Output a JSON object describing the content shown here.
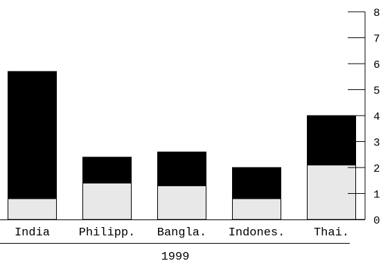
{
  "chart_data": {
    "type": "bar",
    "stacked": true,
    "categories": [
      "India",
      "Philipp.",
      "Bangla.",
      "Indones.",
      "Thai."
    ],
    "group_label": "1999",
    "series": [
      {
        "values": [
          0.8,
          1.4,
          1.3,
          0.8,
          2.1
        ],
        "color": "#e8e8e8"
      },
      {
        "values": [
          4.9,
          1.0,
          1.3,
          1.2,
          1.9
        ],
        "color": "#000000"
      }
    ],
    "ylim": [
      0,
      8
    ],
    "yticks": [
      "0",
      "1",
      "2",
      "3",
      "4",
      "5",
      "6",
      "7",
      "8"
    ],
    "y_axis_side": "right",
    "grid": false,
    "title": "",
    "xlabel": "",
    "ylabel": ""
  }
}
